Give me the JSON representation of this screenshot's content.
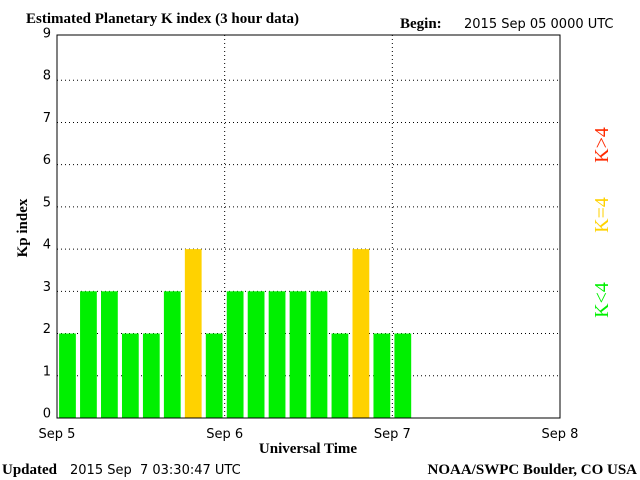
{
  "chart_data": {
    "type": "bar",
    "title": "Estimated Planetary K index (3 hour data)",
    "begin_label": "Begin:",
    "begin": "2015 Sep 05 0000 UTC",
    "y_label": "Kp index",
    "x_label": "Universal Time",
    "updated_label": "Updated",
    "updated": "2015 Sep  7 03:30:47 UTC",
    "source": "NOAA/SWPC Boulder, CO USA",
    "x": [
      0,
      0.125,
      0.25,
      0.375,
      0.5,
      0.625,
      0.75,
      0.875,
      1,
      1.125,
      1.25,
      1.375,
      1.5,
      1.625,
      1.75,
      1.875,
      2
    ],
    "values": [
      2,
      3,
      3,
      2,
      2,
      3,
      4,
      2,
      3,
      3,
      3,
      3,
      3,
      2,
      4,
      2,
      2
    ],
    "bar_colors": [
      "#00f000",
      "#00f000",
      "#00f000",
      "#00f000",
      "#00f000",
      "#00f000",
      "#ffd200",
      "#00f000",
      "#00f000",
      "#00f000",
      "#00f000",
      "#00f000",
      "#00f000",
      "#00f000",
      "#ffd200",
      "#00f000",
      "#00f000"
    ],
    "bar_width": 0.1,
    "xlim": [
      0,
      3
    ],
    "xticks": [
      {
        "value": 0,
        "label": "Sep 5"
      },
      {
        "value": 1,
        "label": "Sep 6"
      },
      {
        "value": 2,
        "label": "Sep 7"
      },
      {
        "value": 3,
        "label": "Sep 8"
      }
    ],
    "ylim": [
      0,
      9
    ],
    "yticks": [
      0,
      1,
      2,
      3,
      4,
      5,
      6,
      7,
      8,
      9
    ],
    "grid": true,
    "legend": [
      {
        "name": "K<4",
        "color": "#00f000"
      },
      {
        "name": "K=4",
        "color": "#ffd200"
      },
      {
        "name": "K>4",
        "color": "#ff2a00"
      }
    ]
  }
}
